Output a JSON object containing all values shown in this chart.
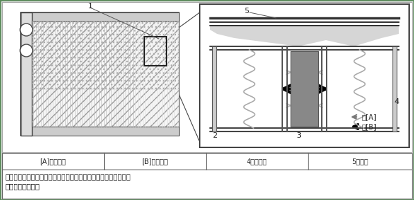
{
  "bg_color": "#e8e8e8",
  "diagram_bg": "#ffffff",
  "border_color": "#5a8a5a",
  "dark": "#333333",
  "mid": "#888888",
  "light_gray": "#cccccc",
  "lighter_gray": "#dddddd",
  "legend_items": [
    "[A]：　蓄冷",
    "[B]：　放冷",
    "4．フィン",
    "5．冷媒"
  ],
  "cap_line1": "図４　エコクールの効果。蓄冷材封入エバポレータ搭載車と非搭",
  "cap_line2": "載車の温度比較。",
  "labels": {
    "l1": "1",
    "l2": "2",
    "l3": "3",
    "l4": "4",
    "l5": "5"
  }
}
